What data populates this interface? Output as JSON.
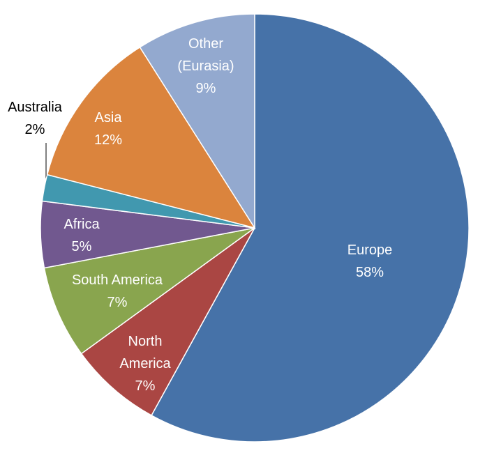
{
  "chart_data": {
    "type": "pie",
    "categories": [
      "Europe",
      "North America",
      "South America",
      "Africa",
      "Australia",
      "Asia",
      "Other (Eurasia)"
    ],
    "values": [
      58,
      7,
      7,
      5,
      2,
      12,
      9
    ],
    "value_labels": [
      "58%",
      "7%",
      "7%",
      "5%",
      "2%",
      "12%",
      "9%"
    ],
    "colors": [
      "#4672a8",
      "#aa4643",
      "#89a54e",
      "#71588f",
      "#4198af",
      "#db843d",
      "#93a9cf"
    ]
  }
}
